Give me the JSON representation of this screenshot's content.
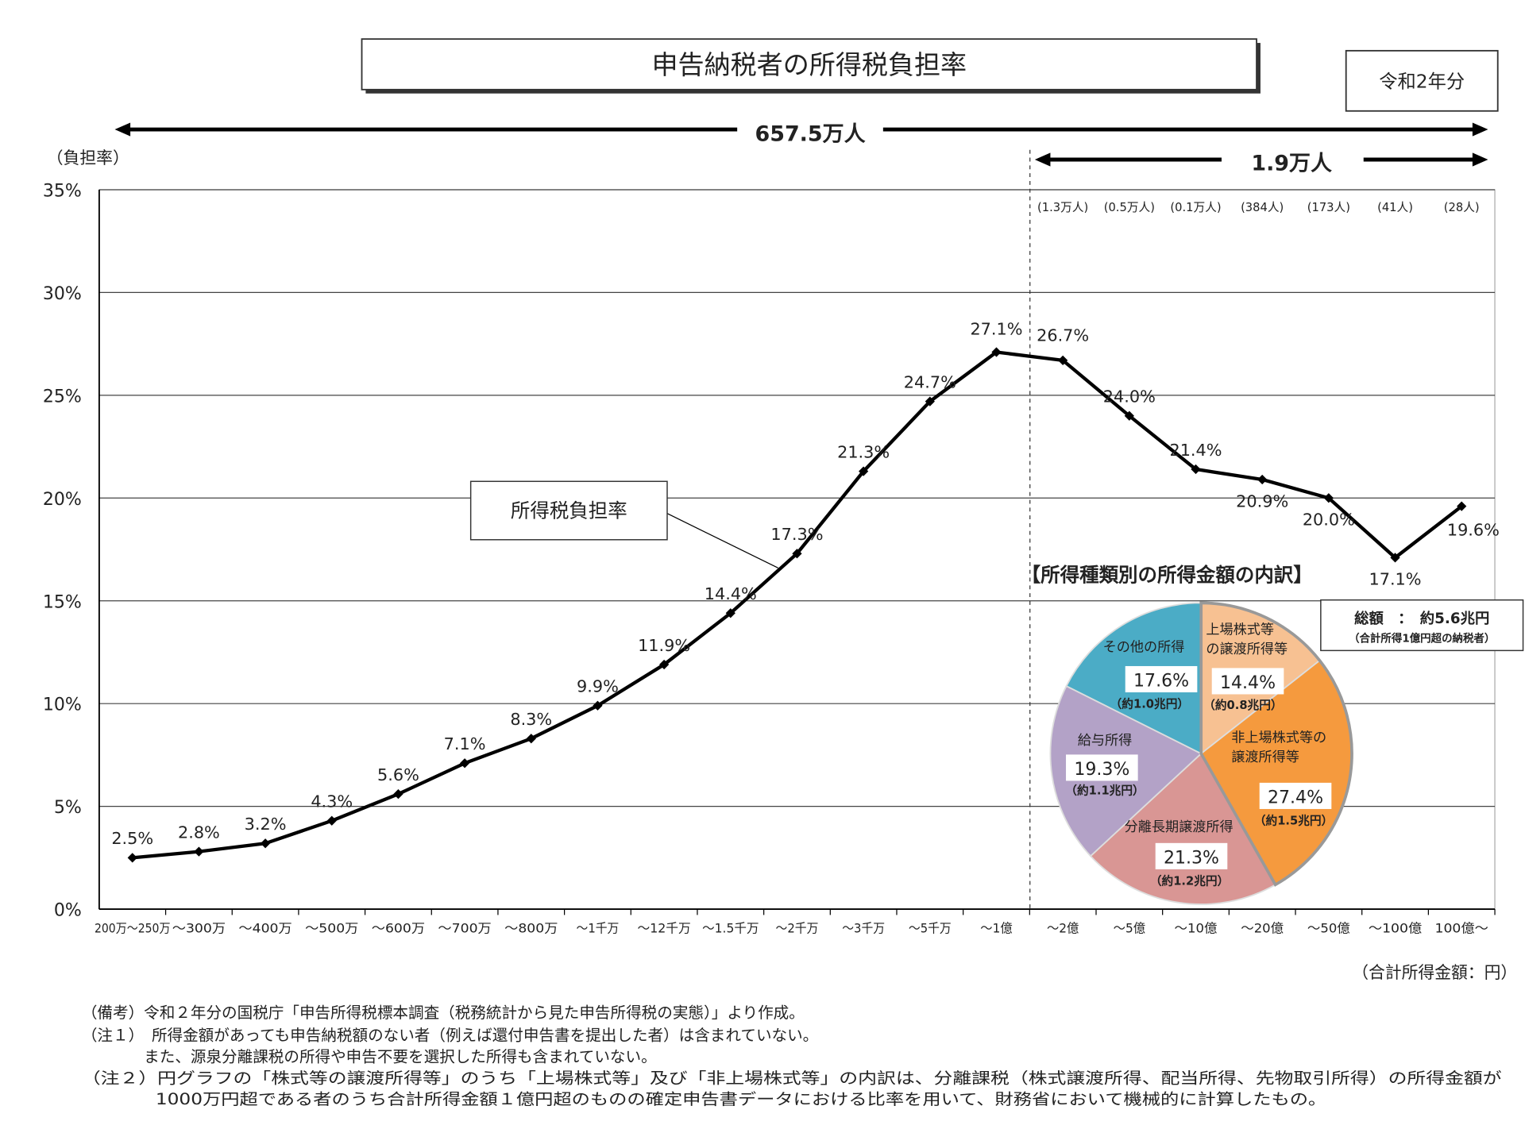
{
  "chart_data": {
    "type": "line",
    "title": "申告納税者の所得税負担率",
    "year_badge": "令和2年分",
    "ylabel": "（負担率）",
    "xlabel": "（合計所得金額：円）",
    "ylim": [
      0,
      35
    ],
    "yticks": [
      "0%",
      "5%",
      "10%",
      "15%",
      "20%",
      "25%",
      "30%",
      "35%"
    ],
    "grid": true,
    "total_span_label": "657.5万人",
    "high_span_label": "1.9万人",
    "high_counts": [
      "(1.3万人)",
      "(0.5万人)",
      "(0.1万人)",
      "(384人)",
      "(173人)",
      "(41人)",
      "(28人)"
    ],
    "categories": [
      "200万～250万",
      "～300万",
      "～400万",
      "～500万",
      "～600万",
      "～700万",
      "～800万",
      "～1千万",
      "～12千万",
      "～1.5千万",
      "～2千万",
      "～3千万",
      "～5千万",
      "～1億",
      "～2億",
      "～5億",
      "～10億",
      "～20億",
      "～50億",
      "～100億",
      "100億～"
    ],
    "series": [
      {
        "name": "所得税負担率",
        "values": [
          2.5,
          2.8,
          3.2,
          4.3,
          5.6,
          7.1,
          8.3,
          9.9,
          11.9,
          14.4,
          17.3,
          21.3,
          24.7,
          27.1,
          26.7,
          24.0,
          21.4,
          20.9,
          20.0,
          17.1,
          19.6
        ],
        "labels": [
          "2.5%",
          "2.8%",
          "3.2%",
          "4.3%",
          "5.6%",
          "7.1%",
          "8.3%",
          "9.9%",
          "11.9%",
          "14.4%",
          "17.3%",
          "21.3%",
          "24.7%",
          "27.1%",
          "26.7%",
          "24.0%",
          "21.4%",
          "20.9%",
          "20.0%",
          "17.1%",
          "19.6%"
        ],
        "color": "#000000"
      }
    ],
    "pie": {
      "type": "pie",
      "title": "【所得種類別の所得金額の内訳】",
      "total": "総額　：　約5.6兆円",
      "total_note": "（合計所得1億円超の納税者）",
      "slices": [
        {
          "name": "上場株式等の譲渡所得等",
          "name_lines": [
            "上場株式等",
            "の譲渡所得等"
          ],
          "value": 14.4,
          "label": "14.4%",
          "amount": "（約0.8兆円）",
          "color": "#f7c192"
        },
        {
          "name": "非上場株式等の譲渡所得等",
          "name_lines": [
            "非上場株式等の",
            "譲渡所得等"
          ],
          "value": 27.4,
          "label": "27.4%",
          "amount": "（約1.5兆円）",
          "color": "#f59a3e"
        },
        {
          "name": "分離長期譲渡所得",
          "name_lines": [
            "分離長期譲渡所得"
          ],
          "value": 21.3,
          "label": "21.3%",
          "amount": "（約1.2兆円）",
          "color": "#d99694"
        },
        {
          "name": "給与所得",
          "name_lines": [
            "給与所得"
          ],
          "value": 19.3,
          "label": "19.3%",
          "amount": "（約1.1兆円）",
          "color": "#b3a2c7"
        },
        {
          "name": "その他の所得",
          "name_lines": [
            "その他の所得"
          ],
          "value": 17.6,
          "label": "17.6%",
          "amount": "（約1.0兆円）",
          "color": "#4bacc6"
        }
      ]
    }
  },
  "notes": [
    "（備考）令和２年分の国税庁「申告所得税標本調査（税務統計から見た申告所得税の実態）」より作成。",
    "（注１）　所得金額があっても申告納税額のない者（例えば還付申告書を提出した者）は含まれていない。",
    "　　　　また、源泉分離課税の所得や申告不要を選択した所得も含まれていない。",
    "（注２）円グラフの「株式等の譲渡所得等」のうち「上場株式等」及び「非上場株式等」の内訳は、分離課税（株式譲渡所得、配当所得、先物取引所得）の所得金額が",
    "　　　　1000万円超である者のうち合計所得金額１億円超のものの確定申告書データにおける比率を用いて、財務省において機械的に計算したもの。"
  ]
}
